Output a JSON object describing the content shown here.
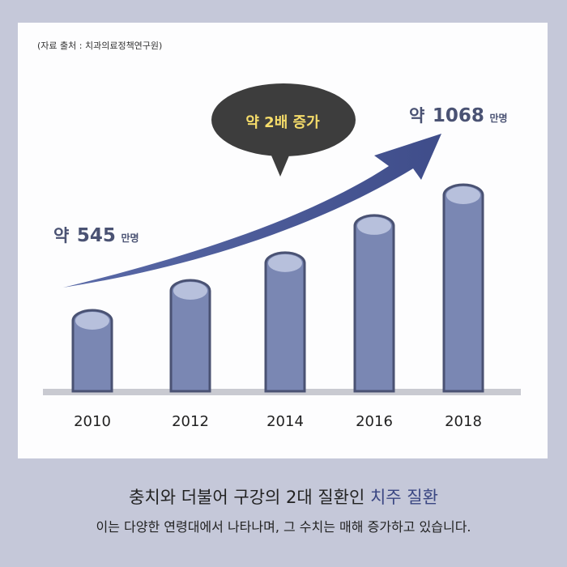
{
  "source_note": "(자료 출처 : 치과의료정책연구원)",
  "chart_data": {
    "type": "bar",
    "categories": [
      "2010",
      "2012",
      "2014",
      "2016",
      "2018"
    ],
    "values": [
      545,
      670,
      785,
      940,
      1068
    ],
    "unit": "만명",
    "annotations": {
      "start": {
        "prefix": "약",
        "value": "545",
        "unit": "만명"
      },
      "end": {
        "prefix": "약",
        "value": "1068",
        "unit": "만명"
      },
      "bubble": "약 2배 증가"
    },
    "grid": false,
    "bar_style": "cylinder"
  },
  "colors": {
    "background": "#c5c8d9",
    "bar_body": "#7a87b3",
    "bar_top": "#b7c0dc",
    "bar_outline": "#4a5273",
    "arrow": "#45548f",
    "bubble": "#3d3d3d",
    "bubble_text": "#f5dc6a",
    "accent_text": "#3a4682"
  },
  "caption": {
    "headline": "충치와 더불어 구강의 2대 질환인 ",
    "headline_accent": "치주 질환",
    "subline": "이는 다양한 연령대에서 나타나며, 그 수치는 매해 증가하고 있습니다."
  }
}
